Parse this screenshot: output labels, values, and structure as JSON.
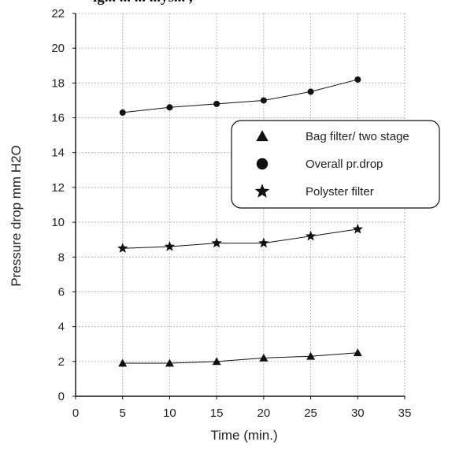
{
  "caption_fragment": "ig... ... ... ...ys... ,",
  "chart_data": {
    "type": "line",
    "title": "",
    "xlabel": "Time (min.)",
    "ylabel": "Pressure drop mm H2O",
    "xlim": [
      0,
      35
    ],
    "ylim": [
      0,
      22
    ],
    "x_ticks": [
      0,
      5,
      10,
      15,
      20,
      25,
      30,
      35
    ],
    "y_ticks": [
      0,
      2,
      4,
      6,
      8,
      10,
      12,
      14,
      16,
      18,
      20,
      22
    ],
    "grid": true,
    "legend_position": "center-right",
    "series": [
      {
        "name": "Bag filter/ two stage",
        "marker": "triangle",
        "x": [
          5,
          10,
          15,
          20,
          25,
          30
        ],
        "y": [
          1.9,
          1.9,
          2.0,
          2.2,
          2.3,
          2.5
        ]
      },
      {
        "name": "Overall pr.drop",
        "marker": "circle",
        "x": [
          5,
          10,
          15,
          20,
          25,
          30
        ],
        "y": [
          16.3,
          16.6,
          16.8,
          17.0,
          17.5,
          18.2
        ]
      },
      {
        "name": "Polyster filter",
        "marker": "star",
        "x": [
          5,
          10,
          15,
          20,
          25,
          30
        ],
        "y": [
          8.5,
          8.6,
          8.8,
          8.8,
          9.2,
          9.6
        ]
      }
    ],
    "colors": {
      "ink": "#111111",
      "grid": "#b8b8b8"
    }
  }
}
